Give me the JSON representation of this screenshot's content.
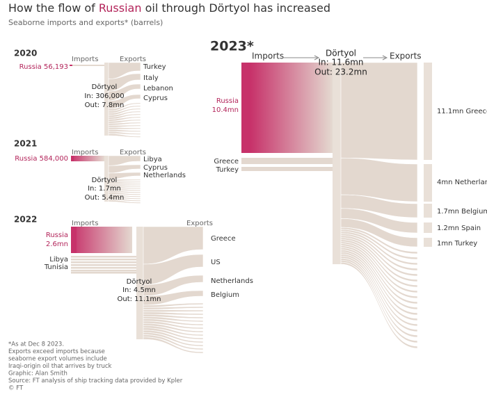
{
  "header": {
    "title_start": "How the flow of",
    "title_highlight": "Russian",
    "title_end": "oil through Dörtyol has increased",
    "subtitle": "Seaborne imports and exports* (barrels)"
  },
  "panels": [
    {
      "year": "2020",
      "imports_label": "Imports",
      "exports_label": "Exports",
      "sources": [
        {
          "name": "Russia",
          "amount": "56,193"
        }
      ],
      "hub": "Dörtyol",
      "in": "In: 306,000",
      "out": "Out: 7.8mn",
      "destinations": [
        "Turkey",
        "Italy",
        "Lebanon",
        "Cyprus"
      ]
    },
    {
      "year": "2021",
      "imports_label": "Imports",
      "exports_label": "Exports",
      "sources": [
        {
          "name": "Russia",
          "amount": "584,000"
        }
      ],
      "hub": "Dörtyol",
      "in": "In: 1.7mn",
      "out": "Out: 5.4mn",
      "destinations": [
        "Libya",
        "Cyprus",
        "Netherlands"
      ]
    },
    {
      "year": "2022",
      "imports_label": "Imports",
      "exports_label": "Exports",
      "sources": [
        {
          "name": "Russia",
          "amount": "2.6mn"
        },
        {
          "name": "Libya"
        },
        {
          "name": "Tunisia"
        }
      ],
      "hub": "Dörtyol",
      "in": "In: 4.5mn",
      "out": "Out: 11.1mn",
      "destinations": [
        "Greece",
        "US",
        "Netherlands",
        "Belgium"
      ]
    },
    {
      "year": "2023*",
      "imports_label": "Imports",
      "exports_label": "Exports",
      "sources": [
        {
          "name": "Russia",
          "amount": "10.4mn"
        },
        {
          "name": "Greece"
        },
        {
          "name": "Turkey"
        }
      ],
      "hub": "Dörtyol",
      "in": "In: 11.6mn",
      "out": "Out: 23.2mn",
      "destinations": [
        {
          "amount": "11.1mn",
          "name": "Greece"
        },
        {
          "amount": "4mn",
          "name": "Netherlands"
        },
        {
          "amount": "1.7mn",
          "name": "Belgium"
        },
        {
          "amount": "1.2mn",
          "name": "Spain"
        },
        {
          "amount": "1mn",
          "name": "Turkey"
        }
      ]
    }
  ],
  "footnote": [
    "*As at Dec 8 2023.",
    "Exports exceed imports because",
    "seaborne export volumes include",
    "Iraqi-origin oil that arrives by truck",
    "Graphic: Alan Smith",
    "Source: FT analysis of ship tracking data provided by Kpler",
    "© FT"
  ]
}
